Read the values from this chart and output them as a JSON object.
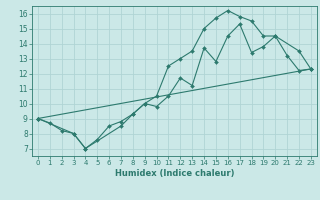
{
  "xlabel": "Humidex (Indice chaleur)",
  "background_color": "#cbe8e7",
  "grid_color": "#b0d4d4",
  "line_color": "#2d7a6e",
  "xlim": [
    -0.5,
    23.5
  ],
  "ylim": [
    6.5,
    16.5
  ],
  "xticks": [
    0,
    1,
    2,
    3,
    4,
    5,
    6,
    7,
    8,
    9,
    10,
    11,
    12,
    13,
    14,
    15,
    16,
    17,
    18,
    19,
    20,
    21,
    22,
    23
  ],
  "yticks": [
    7,
    8,
    9,
    10,
    11,
    12,
    13,
    14,
    15,
    16
  ],
  "series1_x": [
    0,
    1,
    2,
    3,
    4,
    5,
    6,
    7,
    8,
    9,
    10,
    11,
    12,
    13,
    14,
    15,
    16,
    17,
    18,
    19,
    20,
    21,
    22,
    23
  ],
  "series1_y": [
    9.0,
    8.7,
    8.2,
    8.0,
    7.0,
    7.6,
    8.5,
    8.8,
    9.3,
    10.0,
    9.8,
    10.5,
    11.7,
    11.2,
    13.7,
    12.8,
    14.5,
    15.3,
    13.4,
    13.8,
    14.5,
    13.2,
    12.2,
    12.3
  ],
  "series2_x": [
    0,
    3,
    4,
    7,
    8,
    9,
    10,
    11,
    12,
    13,
    14,
    15,
    16,
    17,
    18,
    19,
    20,
    22,
    23
  ],
  "series2_y": [
    9.0,
    8.0,
    7.0,
    8.5,
    9.3,
    10.0,
    10.5,
    12.5,
    13.0,
    13.5,
    15.0,
    15.7,
    16.2,
    15.8,
    15.5,
    14.5,
    14.5,
    13.5,
    12.3
  ],
  "series3_x": [
    0,
    23
  ],
  "series3_y": [
    9.0,
    12.3
  ]
}
